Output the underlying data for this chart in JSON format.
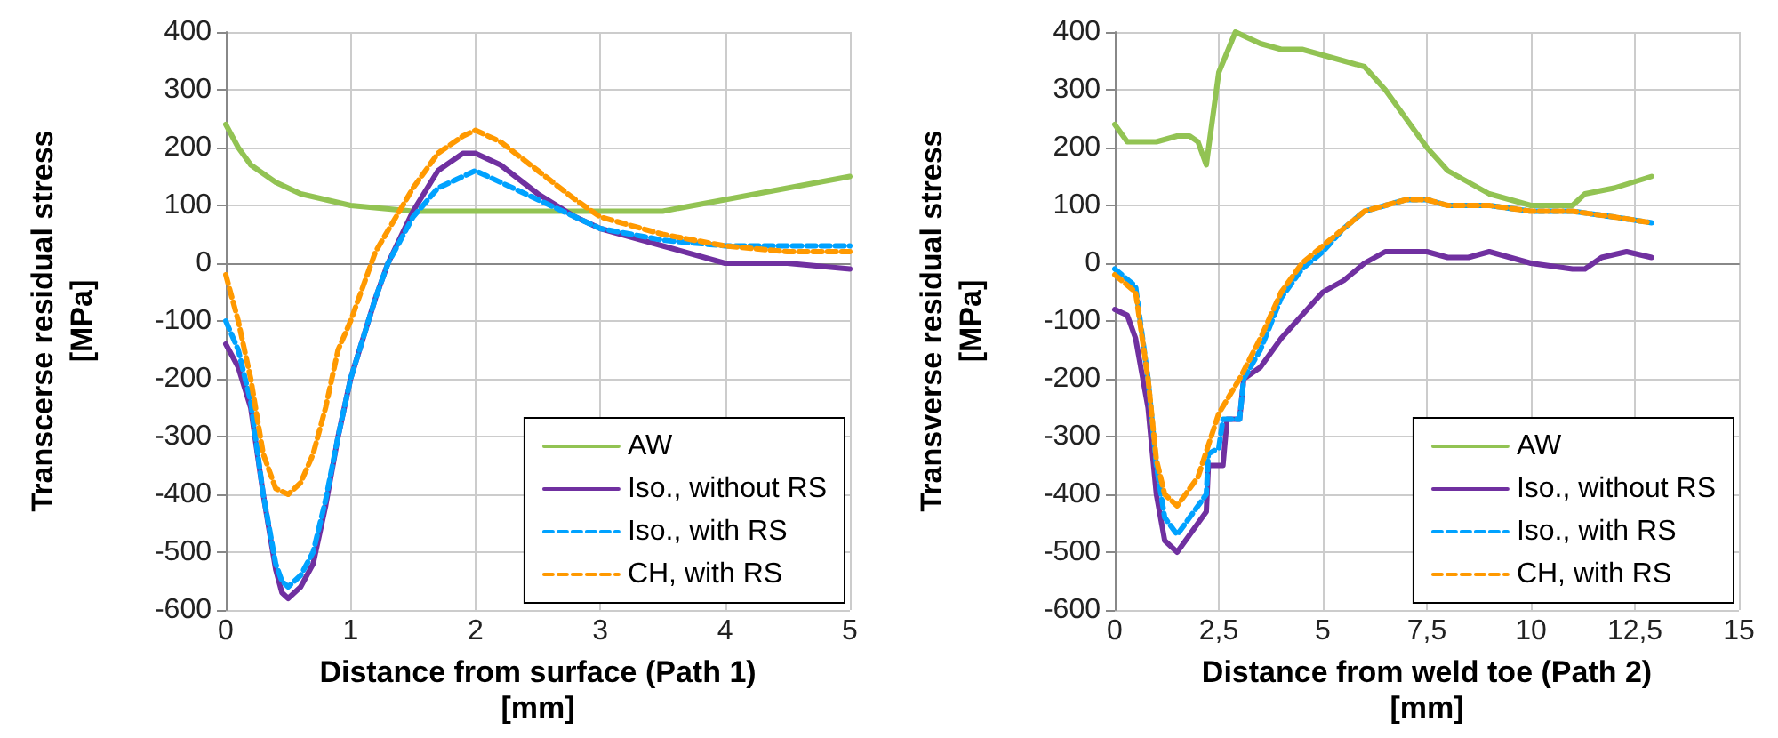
{
  "chart_data": [
    {
      "type": "line",
      "xlabel": "Distance from surface (Path 1)\n[mm]",
      "ylabel": "Transcerse residual stress\n[MPa]",
      "xlim": [
        0,
        5
      ],
      "xticks": [
        0,
        1,
        2,
        3,
        4,
        5
      ],
      "ylim": [
        -600,
        400
      ],
      "yticks": [
        -600,
        -500,
        -400,
        -300,
        -200,
        -100,
        0,
        100,
        200,
        300,
        400
      ],
      "grid": true,
      "legend": "bottom right",
      "marker": "none",
      "series": [
        {
          "name": "AW",
          "color": "#92c353",
          "line_style": "solid",
          "x": [
            0,
            0.1,
            0.2,
            0.4,
            0.6,
            0.8,
            1,
            1.5,
            2,
            2.5,
            3,
            3.5,
            4,
            4.5,
            5
          ],
          "values": [
            240,
            200,
            170,
            140,
            120,
            110,
            100,
            90,
            90,
            90,
            90,
            90,
            110,
            130,
            150
          ]
        },
        {
          "name": "Iso., without RS",
          "color": "#7030a0",
          "line_style": "solid",
          "x": [
            0,
            0.1,
            0.2,
            0.3,
            0.4,
            0.45,
            0.5,
            0.6,
            0.7,
            0.8,
            0.9,
            1,
            1.2,
            1.3,
            1.5,
            1.7,
            1.9,
            2,
            2.2,
            2.5,
            2.8,
            3,
            3.5,
            4,
            4.5,
            5
          ],
          "values": [
            -140,
            -180,
            -250,
            -400,
            -530,
            -570,
            -580,
            -560,
            -520,
            -420,
            -300,
            -200,
            -60,
            0,
            90,
            160,
            190,
            190,
            170,
            120,
            80,
            60,
            30,
            0,
            0,
            -10
          ]
        },
        {
          "name": "Iso., with RS",
          "color": "#00a2ff",
          "line_style": "dashed",
          "x": [
            0,
            0.1,
            0.2,
            0.3,
            0.4,
            0.45,
            0.5,
            0.6,
            0.7,
            0.8,
            0.9,
            1,
            1.2,
            1.3,
            1.5,
            1.7,
            1.9,
            2,
            2.2,
            2.5,
            2.8,
            3,
            3.5,
            4,
            4.5,
            5
          ],
          "values": [
            -100,
            -150,
            -240,
            -400,
            -520,
            -550,
            -560,
            -540,
            -500,
            -410,
            -300,
            -200,
            -60,
            0,
            80,
            130,
            150,
            160,
            140,
            110,
            80,
            60,
            40,
            30,
            30,
            30
          ]
        },
        {
          "name": "CH, with RS",
          "color": "#ff9900",
          "line_style": "dashed",
          "x": [
            0,
            0.1,
            0.2,
            0.3,
            0.4,
            0.5,
            0.6,
            0.7,
            0.8,
            0.9,
            1,
            1.1,
            1.2,
            1.5,
            1.7,
            1.9,
            2,
            2.2,
            2.5,
            2.8,
            3,
            3.5,
            4,
            4.5,
            5
          ],
          "values": [
            -20,
            -100,
            -200,
            -330,
            -390,
            -400,
            -380,
            -330,
            -250,
            -150,
            -100,
            -40,
            20,
            130,
            190,
            220,
            230,
            210,
            160,
            110,
            80,
            50,
            30,
            20,
            20
          ]
        }
      ]
    },
    {
      "type": "line",
      "xlabel": "Distance from weld toe (Path 2)\n[mm]",
      "ylabel": "Transverse residual stress\n[MPa]",
      "xlim": [
        0,
        15
      ],
      "xticks": [
        0,
        {
          "value": 2.5,
          "label": "2,5"
        },
        5,
        {
          "value": 7.5,
          "label": "7,5"
        },
        10,
        {
          "value": 12.5,
          "label": "12,5"
        },
        15
      ],
      "ylim": [
        -600,
        400
      ],
      "yticks": [
        -600,
        -500,
        -400,
        -300,
        -200,
        -100,
        0,
        100,
        200,
        300,
        400
      ],
      "grid": true,
      "legend": "bottom right",
      "marker": "none",
      "series": [
        {
          "name": "AW",
          "color": "#92c353",
          "line_style": "solid",
          "x": [
            0,
            0.3,
            0.5,
            1,
            1.5,
            1.8,
            2,
            2.2,
            2.5,
            2.9,
            3.5,
            4,
            4.5,
            5,
            5.5,
            6,
            6.5,
            7,
            7.5,
            8,
            9,
            10,
            11,
            11.3,
            12,
            12.9
          ],
          "values": [
            240,
            210,
            210,
            210,
            220,
            220,
            210,
            170,
            330,
            400,
            380,
            370,
            370,
            360,
            350,
            340,
            300,
            250,
            200,
            160,
            120,
            100,
            100,
            120,
            130,
            150
          ]
        },
        {
          "name": "Iso., without RS",
          "color": "#7030a0",
          "line_style": "solid",
          "x": [
            0,
            0.3,
            0.5,
            0.8,
            1,
            1.2,
            1.5,
            1.8,
            2.2,
            2.25,
            2.6,
            2.7,
            3,
            3.1,
            3.5,
            4,
            4.5,
            5,
            5.5,
            6,
            6.5,
            7,
            7.5,
            8,
            8.5,
            9,
            9.5,
            10,
            11,
            11.3,
            11.7,
            12.3,
            12.9
          ],
          "values": [
            -80,
            -90,
            -130,
            -250,
            -400,
            -480,
            -500,
            -470,
            -430,
            -350,
            -350,
            -270,
            -270,
            -200,
            -180,
            -130,
            -90,
            -50,
            -30,
            0,
            20,
            20,
            20,
            10,
            10,
            20,
            10,
            0,
            -10,
            -10,
            10,
            20,
            10
          ]
        },
        {
          "name": "Iso., with RS",
          "color": "#00a2ff",
          "line_style": "dashed",
          "x": [
            0,
            0.5,
            0.8,
            1,
            1.2,
            1.5,
            1.8,
            2.2,
            2.25,
            2.5,
            2.6,
            3,
            3.1,
            3.5,
            4,
            4.5,
            5,
            5.5,
            6,
            6.5,
            7,
            7.5,
            8,
            9,
            10,
            11,
            12,
            12.9
          ],
          "values": [
            -10,
            -40,
            -200,
            -350,
            -440,
            -470,
            -440,
            -400,
            -330,
            -320,
            -270,
            -270,
            -200,
            -150,
            -60,
            -10,
            20,
            60,
            90,
            100,
            110,
            110,
            100,
            100,
            90,
            90,
            80,
            70
          ]
        },
        {
          "name": "CH, with RS",
          "color": "#ff9900",
          "line_style": "dashed",
          "x": [
            0,
            0.5,
            0.8,
            1,
            1.2,
            1.5,
            2,
            2.5,
            3,
            3.5,
            4,
            4.5,
            5,
            5.5,
            6,
            6.5,
            7,
            7.5,
            8,
            9,
            10,
            11,
            12,
            12.9
          ],
          "values": [
            -20,
            -50,
            -200,
            -340,
            -400,
            -420,
            -370,
            -260,
            -200,
            -130,
            -50,
            0,
            30,
            60,
            90,
            100,
            110,
            110,
            100,
            100,
            90,
            90,
            80,
            70
          ]
        }
      ]
    }
  ]
}
